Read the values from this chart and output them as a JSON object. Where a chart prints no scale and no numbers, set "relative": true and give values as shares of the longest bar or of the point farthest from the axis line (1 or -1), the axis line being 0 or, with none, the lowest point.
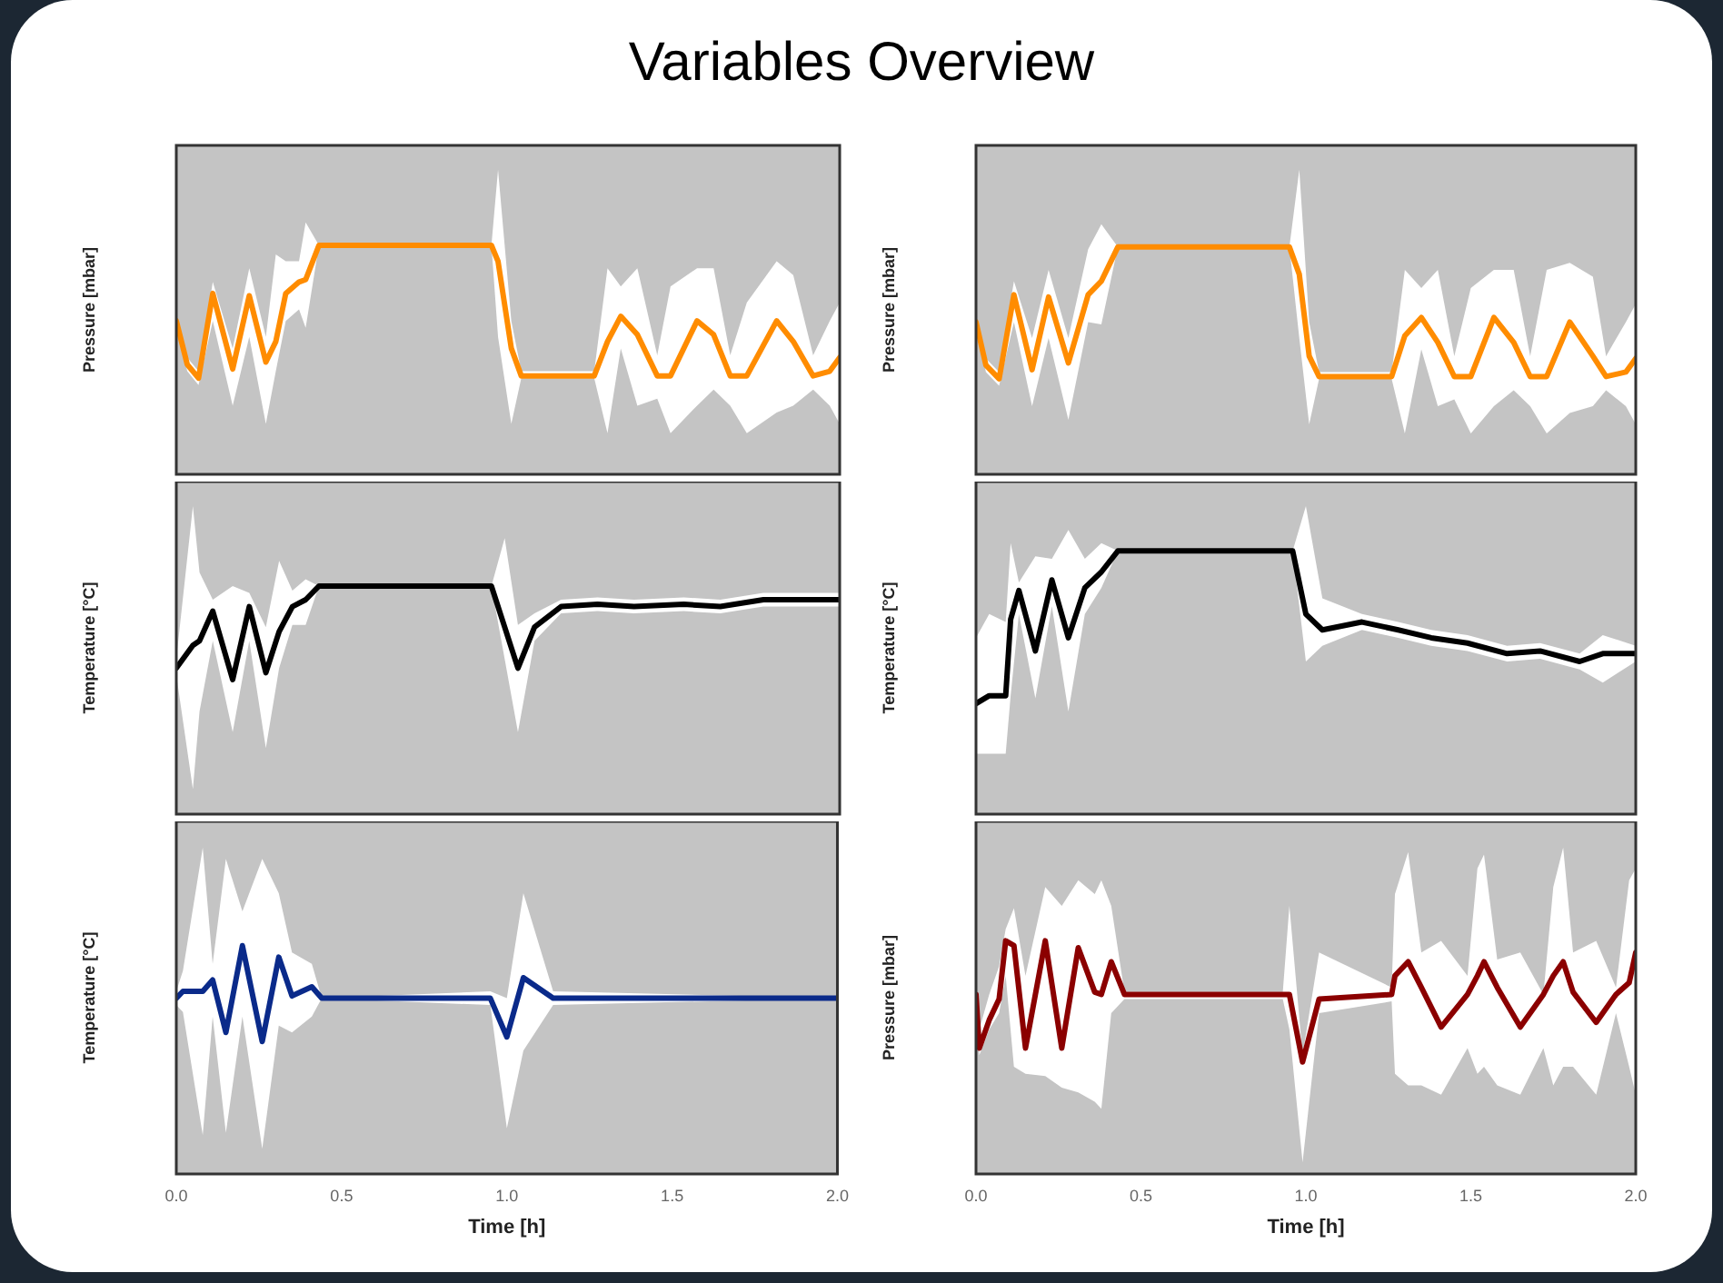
{
  "chart_data": [
    {
      "type": "line",
      "title": "Variables Overview",
      "ylabel": "Pressure [mbar]",
      "relative": true,
      "tick_labels": false,
      "xlim": [
        0,
        2
      ],
      "xticks": [
        {
          "value": 0,
          "label": null
        },
        {
          "value": 0.5,
          "label": null
        },
        {
          "value": 1,
          "label": null
        },
        {
          "value": 1.5,
          "label": null
        },
        {
          "value": 2,
          "label": null
        }
      ],
      "x": [
        0,
        0.033,
        0.067,
        0.11,
        0.17,
        0.22,
        0.27,
        0.3,
        0.33,
        0.37,
        0.39,
        0.43,
        0.95,
        0.97,
        1.01,
        1.04,
        1.26,
        1.3,
        1.34,
        1.39,
        1.45,
        1.49,
        1.57,
        1.62,
        1.67,
        1.72,
        1.81,
        1.86,
        1.92,
        1.97,
        2.0
      ],
      "series": [
        {
          "color": "#ff8c00",
          "values": [
            0.67,
            0.48,
            0.42,
            0.79,
            0.46,
            0.78,
            0.49,
            0.58,
            0.79,
            0.84,
            0.85,
            1,
            1,
            0.93,
            0.55,
            0.43,
            0.43,
            0.58,
            0.69,
            0.61,
            0.43,
            0.43,
            0.67,
            0.61,
            0.43,
            0.43,
            0.67,
            0.58,
            0.43,
            0.45,
            0.51
          ],
          "upper": [
            0.67,
            0.51,
            0.45,
            0.84,
            0.55,
            0.9,
            0.6,
            0.96,
            0.93,
            0.93,
            1.1,
            1,
            1,
            1.33,
            0.67,
            0.45,
            0.45,
            0.9,
            0.82,
            0.9,
            0.52,
            0.82,
            0.9,
            0.9,
            0.52,
            0.75,
            0.93,
            0.87,
            0.52,
            0.67,
            0.75
          ],
          "lower": [
            0.67,
            0.45,
            0.39,
            0.67,
            0.3,
            0.6,
            0.22,
            0.45,
            0.67,
            0.72,
            0.64,
            1,
            1,
            0.6,
            0.22,
            0.42,
            0.42,
            0.18,
            0.55,
            0.3,
            0.33,
            0.18,
            0.3,
            0.37,
            0.3,
            0.18,
            0.27,
            0.3,
            0.37,
            0.3,
            0.22
          ]
        }
      ]
    },
    {
      "type": "line",
      "ylabel": "Pressure [mbar]",
      "relative": true,
      "tick_labels": false,
      "xlim": [
        0,
        2
      ],
      "xticks": [
        {
          "value": 0,
          "label": null
        },
        {
          "value": 0.5,
          "label": null
        },
        {
          "value": 1,
          "label": null
        },
        {
          "value": 1.5,
          "label": null
        },
        {
          "value": 2,
          "label": null
        }
      ],
      "x": [
        0,
        0.03,
        0.07,
        0.115,
        0.17,
        0.22,
        0.28,
        0.34,
        0.38,
        0.43,
        0.95,
        0.98,
        1.01,
        1.04,
        1.26,
        1.3,
        1.35,
        1.4,
        1.45,
        1.5,
        1.57,
        1.63,
        1.68,
        1.73,
        1.8,
        1.87,
        1.91,
        1.97,
        2.0
      ],
      "series": [
        {
          "color": "#ff8c00",
          "values": [
            0.67,
            0.48,
            0.42,
            0.79,
            0.46,
            0.78,
            0.49,
            0.79,
            0.85,
            1,
            1,
            0.88,
            0.52,
            0.43,
            0.43,
            0.61,
            0.69,
            0.58,
            0.43,
            0.43,
            0.69,
            0.58,
            0.43,
            0.43,
            0.67,
            0.52,
            0.43,
            0.45,
            0.51
          ],
          "upper": [
            0.67,
            0.51,
            0.45,
            0.85,
            0.6,
            0.9,
            0.6,
            0.99,
            1.1,
            1,
            1,
            1.34,
            0.67,
            0.45,
            0.45,
            0.9,
            0.82,
            0.9,
            0.52,
            0.82,
            0.9,
            0.9,
            0.52,
            0.9,
            0.93,
            0.87,
            0.52,
            0.67,
            0.75
          ],
          "lower": [
            0.67,
            0.45,
            0.39,
            0.67,
            0.3,
            0.6,
            0.24,
            0.67,
            0.66,
            1,
            1,
            0.6,
            0.22,
            0.42,
            0.42,
            0.18,
            0.55,
            0.3,
            0.33,
            0.18,
            0.3,
            0.37,
            0.3,
            0.18,
            0.27,
            0.3,
            0.37,
            0.3,
            0.22
          ]
        }
      ]
    },
    {
      "type": "line",
      "ylabel": "Temperature [°C]",
      "relative": true,
      "tick_labels": false,
      "xlim": [
        0,
        2
      ],
      "xticks": [
        {
          "value": 0,
          "label": null
        },
        {
          "value": 0.5,
          "label": null
        },
        {
          "value": 1,
          "label": null
        },
        {
          "value": 1.5,
          "label": null
        },
        {
          "value": 2,
          "label": null
        }
      ],
      "x": [
        0,
        0.05,
        0.07,
        0.11,
        0.17,
        0.22,
        0.27,
        0.31,
        0.35,
        0.39,
        0.43,
        0.95,
        0.99,
        1.03,
        1.08,
        1.16,
        1.27,
        1.38,
        1.53,
        1.64,
        1.77,
        2.0
      ],
      "series": [
        {
          "color": "#000000",
          "values": [
            0.64,
            0.74,
            0.76,
            0.89,
            0.59,
            0.91,
            0.62,
            0.8,
            0.91,
            0.94,
            1,
            1,
            0.82,
            0.64,
            0.82,
            0.91,
            0.92,
            0.91,
            0.92,
            0.91,
            0.94,
            0.94
          ],
          "upper": [
            0.68,
            1.35,
            1.06,
            0.94,
            1,
            0.97,
            0.82,
            1.11,
            0.98,
            1.03,
            1,
            1,
            1.21,
            0.83,
            0.88,
            0.94,
            0.95,
            0.94,
            0.95,
            0.94,
            0.97,
            0.97
          ],
          "lower": [
            0.61,
            0.11,
            0.45,
            0.76,
            0.36,
            0.76,
            0.29,
            0.64,
            0.83,
            0.83,
            1,
            1,
            0.68,
            0.36,
            0.76,
            0.88,
            0.89,
            0.88,
            0.89,
            0.88,
            0.91,
            0.91
          ]
        }
      ]
    },
    {
      "type": "line",
      "ylabel": "Temperature [°C]",
      "relative": true,
      "tick_labels": false,
      "xlim": [
        0,
        2
      ],
      "xticks": [
        {
          "value": 0,
          "label": null
        },
        {
          "value": 0.5,
          "label": null
        },
        {
          "value": 1,
          "label": null
        },
        {
          "value": 1.5,
          "label": null
        },
        {
          "value": 2,
          "label": null
        }
      ],
      "x": [
        0,
        0.04,
        0.09,
        0.105,
        0.13,
        0.18,
        0.23,
        0.28,
        0.33,
        0.38,
        0.43,
        0.96,
        1.0,
        1.05,
        1.17,
        1.28,
        1.38,
        1.49,
        1.61,
        1.71,
        1.83,
        1.9,
        2.0
      ],
      "series": [
        {
          "color": "#000000",
          "values": [
            0.42,
            0.45,
            0.45,
            0.74,
            0.85,
            0.62,
            0.89,
            0.67,
            0.86,
            0.92,
            1,
            1,
            0.76,
            0.7,
            0.73,
            0.7,
            0.67,
            0.65,
            0.61,
            0.62,
            0.58,
            0.61,
            0.61
          ],
          "upper": [
            0.67,
            0.76,
            0.73,
            1.03,
            0.88,
            0.98,
            0.97,
            1.08,
            0.97,
            1.03,
            1,
            1,
            1.17,
            0.82,
            0.76,
            0.73,
            0.7,
            0.68,
            0.64,
            0.65,
            0.61,
            0.68,
            0.64
          ],
          "lower": [
            0.23,
            0.23,
            0.23,
            0.45,
            0.76,
            0.44,
            0.79,
            0.39,
            0.76,
            0.86,
            1,
            1,
            0.58,
            0.64,
            0.7,
            0.67,
            0.64,
            0.62,
            0.58,
            0.59,
            0.55,
            0.5,
            0.58
          ]
        }
      ]
    },
    {
      "type": "line",
      "ylabel": "Temperature [°C]",
      "xlabel": "Time [h]",
      "relative": true,
      "tick_labels": "x",
      "xlim": [
        0,
        2
      ],
      "xticks": [
        {
          "value": 0,
          "label": "0.0"
        },
        {
          "value": 0.5,
          "label": "0.5"
        },
        {
          "value": 1,
          "label": "1.0"
        },
        {
          "value": 1.5,
          "label": "1.5"
        },
        {
          "value": 2,
          "label": "2.0"
        }
      ],
      "x": [
        0,
        0.02,
        0.08,
        0.11,
        0.15,
        0.2,
        0.26,
        0.31,
        0.35,
        0.41,
        0.44,
        0.95,
        1.0,
        1.05,
        1.14,
        2.0
      ],
      "series": [
        {
          "color": "#0a2a8a",
          "values": [
            0.77,
            0.8,
            0.8,
            0.85,
            0.62,
            1,
            0.58,
            0.95,
            0.78,
            0.82,
            0.77,
            0.77,
            0.6,
            0.86,
            0.77,
            0.77
          ],
          "upper": [
            0.8,
            0.89,
            1.43,
            0.92,
            1.38,
            1.15,
            1.38,
            1.23,
            0.97,
            0.92,
            0.77,
            0.8,
            0.77,
            1.23,
            0.8,
            0.77
          ],
          "lower": [
            0.74,
            0.71,
            0.17,
            0.69,
            0.18,
            0.69,
            0.11,
            0.65,
            0.62,
            0.69,
            0.77,
            0.74,
            0.2,
            0.54,
            0.74,
            0.77
          ]
        }
      ]
    },
    {
      "type": "line",
      "ylabel": "Pressure [mbar]",
      "xlabel": "Time [h]",
      "relative": true,
      "tick_labels": "x",
      "xlim": [
        0,
        2
      ],
      "xticks": [
        {
          "value": 0,
          "label": "0.0"
        },
        {
          "value": 0.5,
          "label": "0.5"
        },
        {
          "value": 1,
          "label": "1.0"
        },
        {
          "value": 1.5,
          "label": "1.5"
        },
        {
          "value": 2,
          "label": "2.0"
        }
      ],
      "x": [
        0,
        0.01,
        0.04,
        0.07,
        0.09,
        0.115,
        0.15,
        0.21,
        0.26,
        0.31,
        0.36,
        0.38,
        0.41,
        0.45,
        0.93,
        0.95,
        0.99,
        1.04,
        1.26,
        1.27,
        1.31,
        1.35,
        1.41,
        1.49,
        1.52,
        1.54,
        1.58,
        1.65,
        1.72,
        1.75,
        1.78,
        1.81,
        1.88,
        1.94,
        1.98,
        2.0
      ],
      "series": [
        {
          "color": "#8b0000",
          "values": [
            0.77,
            0.54,
            0.66,
            0.75,
            1,
            0.98,
            0.54,
            1,
            0.54,
            0.97,
            0.78,
            0.77,
            0.91,
            0.77,
            0.77,
            0.77,
            0.48,
            0.75,
            0.77,
            0.85,
            0.91,
            0.8,
            0.63,
            0.77,
            0.85,
            0.91,
            0.8,
            0.63,
            0.77,
            0.85,
            0.91,
            0.78,
            0.65,
            0.77,
            0.82,
            0.95
          ],
          "upper": [
            0.77,
            0.62,
            0.77,
            0.89,
            1.05,
            1.14,
            0.85,
            1.23,
            1.15,
            1.26,
            1.2,
            1.26,
            1.15,
            0.78,
            0.78,
            1.15,
            0.51,
            0.95,
            0.8,
            1.2,
            1.38,
            0.95,
            1.0,
            0.85,
            1.31,
            1.37,
            0.92,
            0.95,
            0.77,
            1.23,
            1.4,
            0.95,
            1.0,
            0.8,
            1.26,
            1.31
          ],
          "lower": [
            0.77,
            0.51,
            0.62,
            0.69,
            0.85,
            0.46,
            0.43,
            0.42,
            0.37,
            0.35,
            0.31,
            0.28,
            0.69,
            0.75,
            0.75,
            0.62,
            0.05,
            0.69,
            0.74,
            0.43,
            0.38,
            0.38,
            0.34,
            0.54,
            0.43,
            0.46,
            0.38,
            0.34,
            0.54,
            0.38,
            0.46,
            0.46,
            0.34,
            0.69,
            0.46,
            0.34
          ]
        }
      ]
    }
  ]
}
